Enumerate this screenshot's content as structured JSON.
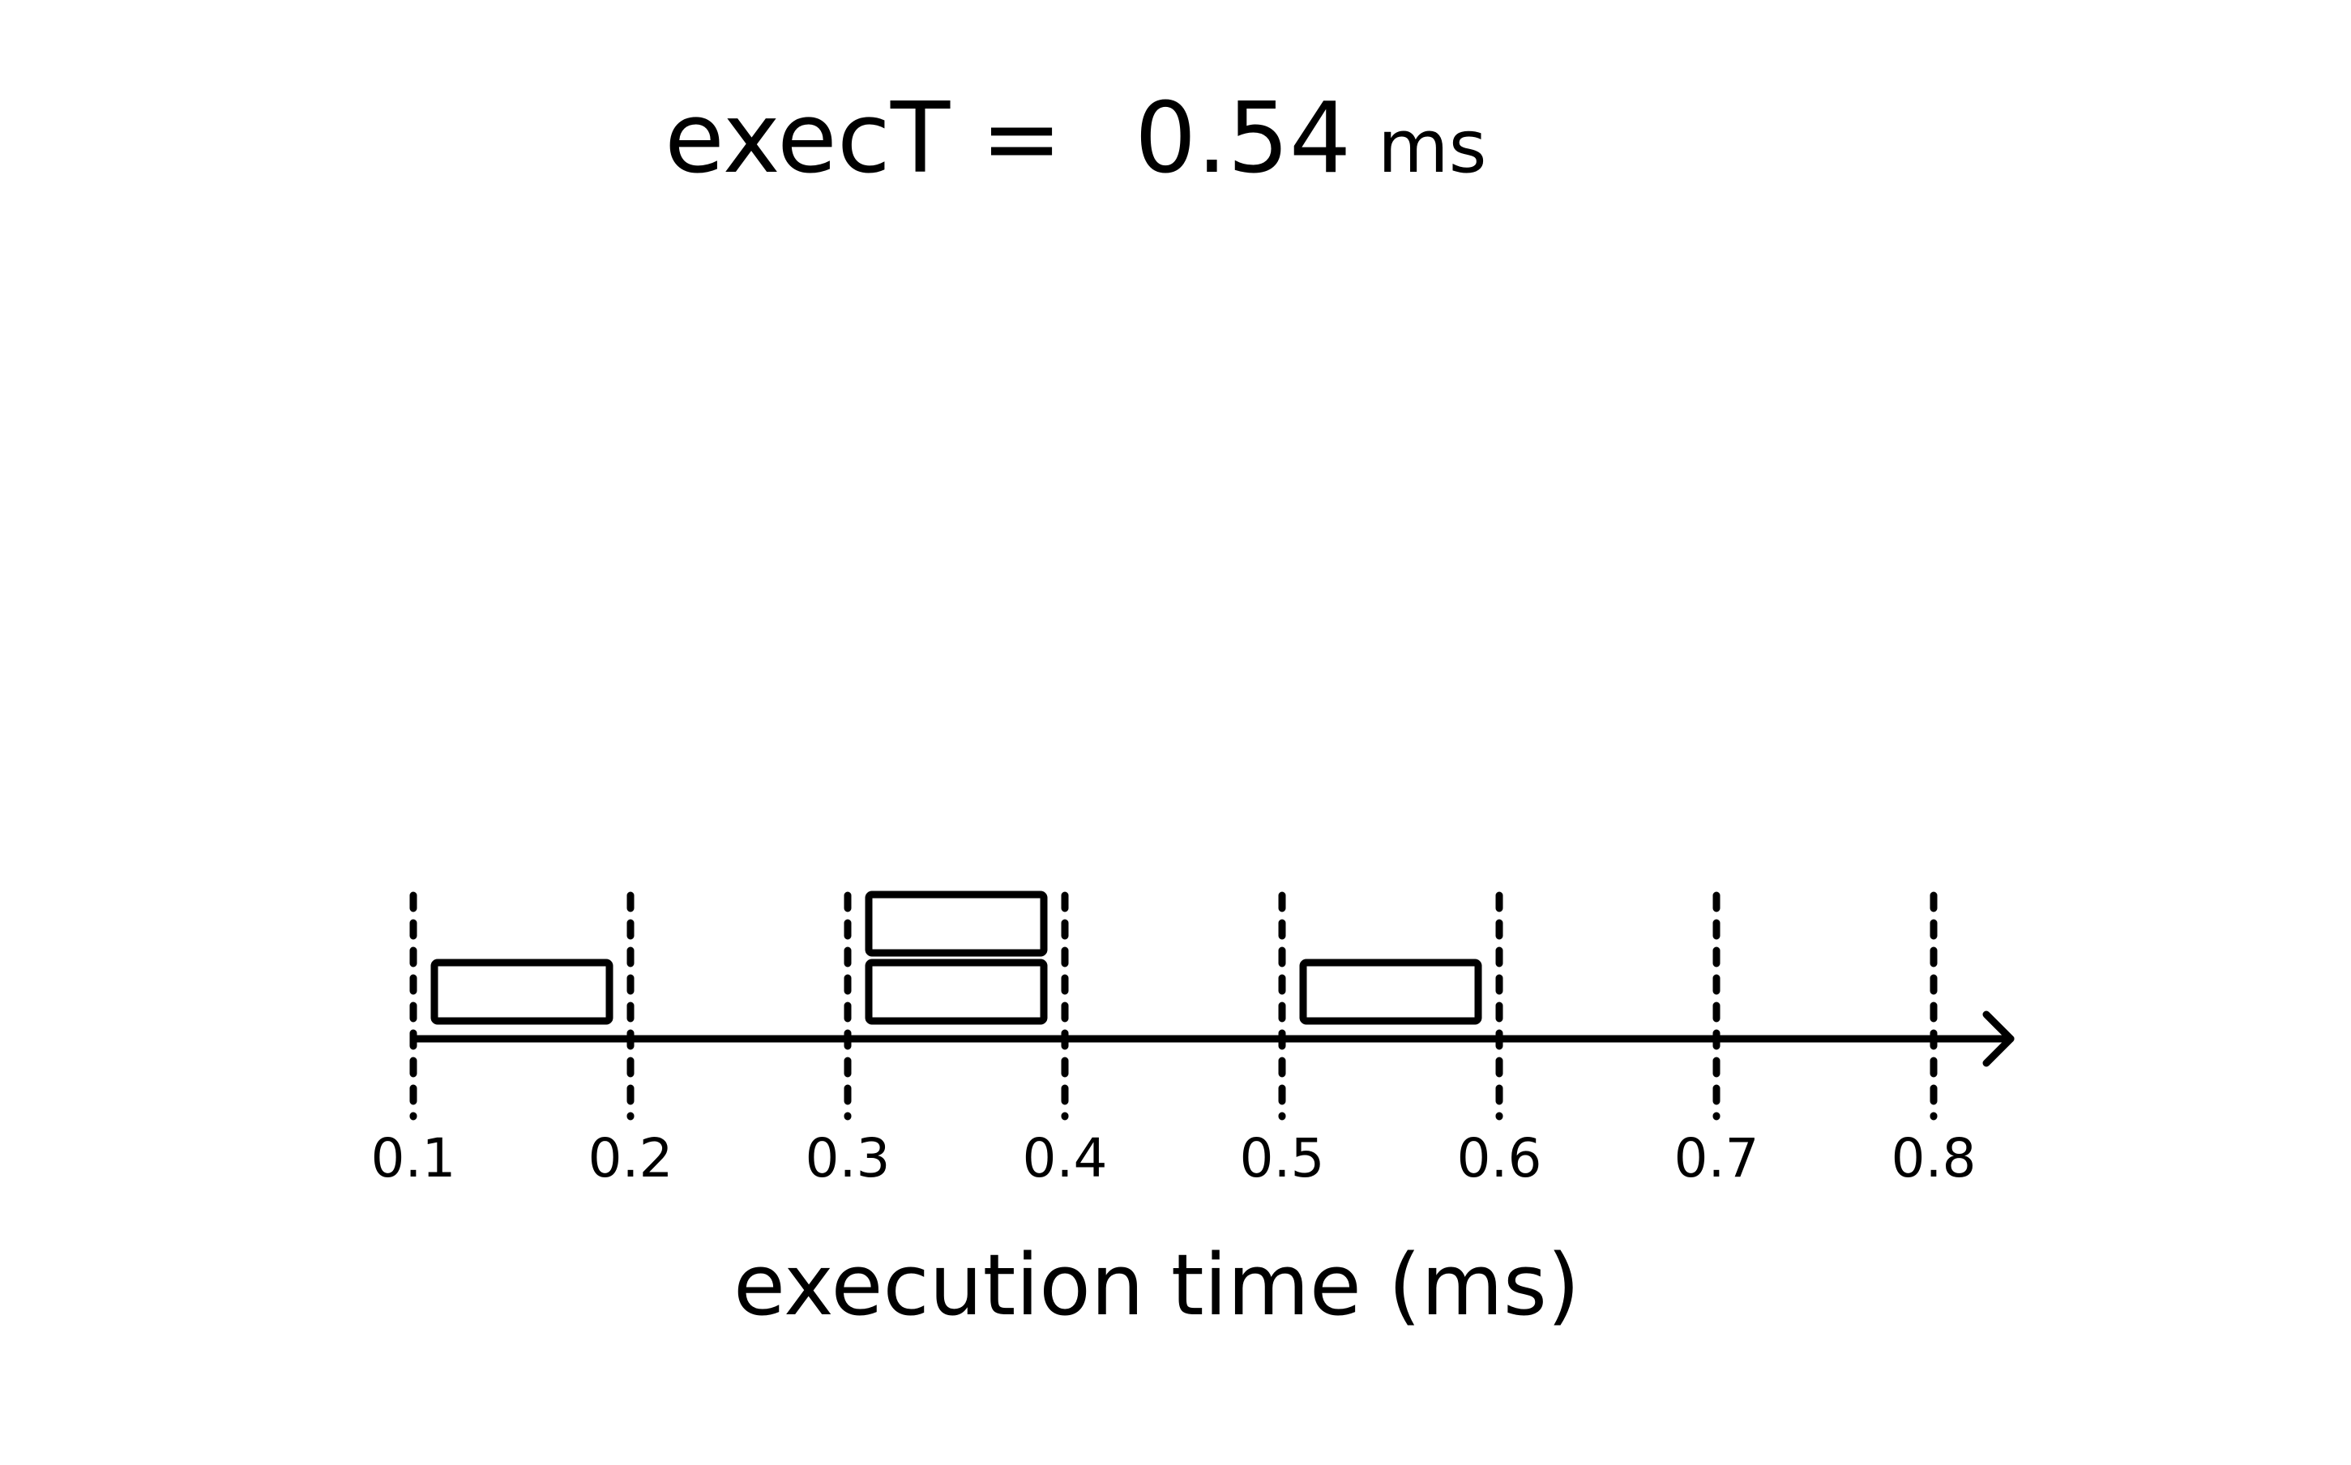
{
  "headline": {
    "label": "execT =",
    "value": "0.54",
    "unit": "ms"
  },
  "timeline": {
    "axis_title": "execution time (ms)",
    "ticks": [
      "0.1",
      "0.2",
      "0.3",
      "0.4",
      "0.5",
      "0.6",
      "0.7",
      "0.8"
    ],
    "tick_values": [
      0.1,
      0.2,
      0.3,
      0.4,
      0.5,
      0.6,
      0.7,
      0.8
    ],
    "has_arrow": true,
    "blocks": [
      {
        "start": 0.1,
        "end": 0.2,
        "lane": 0
      },
      {
        "start": 0.3,
        "end": 0.4,
        "lane": 0
      },
      {
        "start": 0.3,
        "end": 0.4,
        "lane": 1
      },
      {
        "start": 0.5,
        "end": 0.6,
        "lane": 0
      }
    ],
    "ink_color": "#000000",
    "background": "#ffffff"
  }
}
